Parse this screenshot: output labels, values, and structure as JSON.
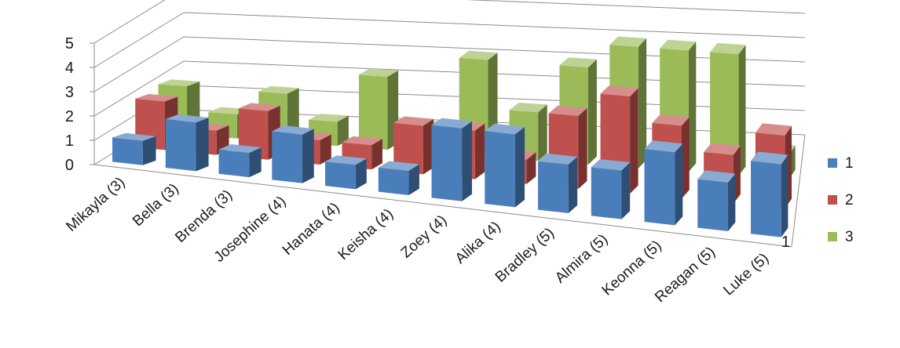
{
  "chart_data": {
    "type": "bar",
    "subtype": "3d-column",
    "categories": [
      "Mikayla (3)",
      "Bella (3)",
      "Brenda (3)",
      "Josephine (4)",
      "Hanata (4)",
      "Keisha (4)",
      "Zoey (4)",
      "Alika (4)",
      "Bradley (5)",
      "Almira (5)",
      "Keonna (5)",
      "Reagan (5)",
      "Luke (5)"
    ],
    "series": [
      {
        "name": "1",
        "color": "#4a7ebb",
        "values": [
          1,
          2,
          1,
          2,
          1,
          1,
          3,
          3,
          2,
          2,
          3,
          2,
          3
        ]
      },
      {
        "name": "2",
        "color": "#c0504d",
        "values": [
          2,
          1,
          2,
          1,
          1,
          2,
          2,
          1,
          3,
          4,
          3,
          2,
          3
        ]
      },
      {
        "name": "3",
        "color": "#9bbb59",
        "values": [
          2,
          1,
          2,
          1,
          3,
          1,
          4,
          2,
          4,
          5,
          5,
          5,
          1
        ]
      }
    ],
    "ylim": [
      0,
      5
    ],
    "yticks": [
      "0",
      "1",
      "2",
      "3",
      "4",
      "5"
    ],
    "depth_label": "1",
    "grid": true,
    "legend_position": "right"
  }
}
